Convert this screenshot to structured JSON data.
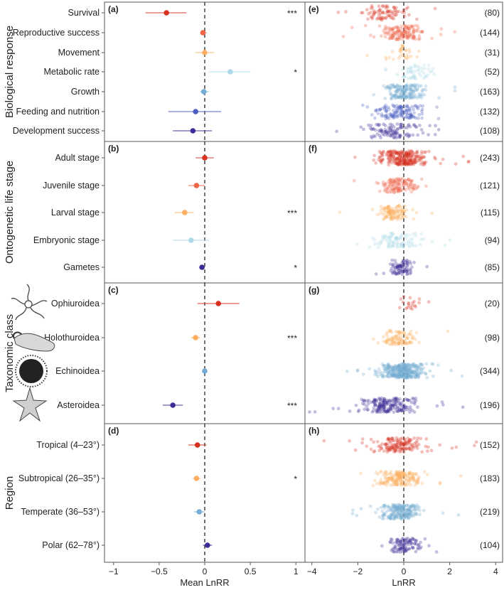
{
  "colors": {
    "red": "#d7301f",
    "orange_red": "#ef6548",
    "orange": "#fdae61",
    "light_blue": "#abd9e9",
    "mid_blue": "#74add1",
    "blue_purple": "#4a5cc0",
    "purple": "#3f2b96"
  },
  "chart_data": [
    {
      "type": "scatter",
      "group_title": "Biological response",
      "left_panel": "(a)",
      "right_panel": "(e)",
      "categories": [
        {
          "label": "Survival",
          "mean": -0.42,
          "ci": [
            -0.65,
            -0.2
          ],
          "sig": "***",
          "n": "(80)",
          "color": "#d7301f",
          "spread": 1.2
        },
        {
          "label": "Reproductive success",
          "mean": -0.02,
          "ci": [
            -0.05,
            0.02
          ],
          "sig": "",
          "n": "(144)",
          "color": "#ef6548",
          "spread": 1.1
        },
        {
          "label": "Movement",
          "mean": 0.0,
          "ci": [
            -0.1,
            0.1
          ],
          "sig": "",
          "n": "(31)",
          "color": "#fdae61",
          "spread": 0.8
        },
        {
          "label": "Metabolic rate",
          "mean": 0.28,
          "ci": [
            0.05,
            0.5
          ],
          "sig": "*",
          "n": "(52)",
          "color": "#abd9e9",
          "spread": 1.0
        },
        {
          "label": "Growth",
          "mean": -0.01,
          "ci": [
            -0.05,
            0.04
          ],
          "sig": "",
          "n": "(163)",
          "color": "#74add1",
          "spread": 1.0
        },
        {
          "label": "Feeding and nutrition",
          "mean": -0.1,
          "ci": [
            -0.4,
            0.18
          ],
          "sig": "",
          "n": "(132)",
          "color": "#4a5cc0",
          "spread": 1.3
        },
        {
          "label": "Development success",
          "mean": -0.13,
          "ci": [
            -0.35,
            0.08
          ],
          "sig": "",
          "n": "(108)",
          "color": "#3f2b96",
          "spread": 1.6
        }
      ]
    },
    {
      "type": "scatter",
      "group_title": "Ontogenetic life stage",
      "left_panel": "(b)",
      "right_panel": "(f)",
      "categories": [
        {
          "label": "Adult stage",
          "mean": 0.0,
          "ci": [
            -0.1,
            0.1
          ],
          "sig": "",
          "n": "(243)",
          "color": "#d7301f",
          "spread": 1.3
        },
        {
          "label": "Juvenile stage",
          "mean": -0.09,
          "ci": [
            -0.18,
            0.0
          ],
          "sig": "",
          "n": "(121)",
          "color": "#ef6548",
          "spread": 1.0
        },
        {
          "label": "Larval stage",
          "mean": -0.22,
          "ci": [
            -0.33,
            -0.12
          ],
          "sig": "***",
          "n": "(115)",
          "color": "#fdae61",
          "spread": 0.9
        },
        {
          "label": "Embryonic stage",
          "mean": -0.15,
          "ci": [
            -0.35,
            0.05
          ],
          "sig": "",
          "n": "(94)",
          "color": "#abd9e9",
          "spread": 1.4
        },
        {
          "label": "Gametes",
          "mean": -0.03,
          "ci": [
            -0.06,
            0.0
          ],
          "sig": "*",
          "n": "(85)",
          "color": "#3f2b96",
          "spread": 0.6
        }
      ]
    },
    {
      "type": "scatter",
      "group_title": "Taxonomic class",
      "left_panel": "(c)",
      "right_panel": "(g)",
      "categories": [
        {
          "label": "Ophiuroidea",
          "mean": 0.15,
          "ci": [
            -0.08,
            0.38
          ],
          "sig": "",
          "n": "(20)",
          "color": "#d7301f",
          "spread": 0.6
        },
        {
          "label": "Holothuroidea",
          "mean": -0.1,
          "ci": [
            -0.15,
            -0.05
          ],
          "sig": "***",
          "n": "(98)",
          "color": "#fdae61",
          "spread": 0.9
        },
        {
          "label": "Echinoidea",
          "mean": 0.0,
          "ci": [
            -0.02,
            0.02
          ],
          "sig": "",
          "n": "(344)",
          "color": "#74add1",
          "spread": 1.2
        },
        {
          "label": "Asteroidea",
          "mean": -0.35,
          "ci": [
            -0.46,
            -0.24
          ],
          "sig": "***",
          "n": "(196)",
          "color": "#3f2b96",
          "spread": 1.4
        }
      ]
    },
    {
      "type": "scatter",
      "group_title": "Region",
      "left_panel": "(d)",
      "right_panel": "(h)",
      "categories": [
        {
          "label": "Tropical (4–23°)",
          "mean": -0.08,
          "ci": [
            -0.18,
            0.02
          ],
          "sig": "",
          "n": "(152)",
          "color": "#d7301f",
          "spread": 1.3
        },
        {
          "label": "Subtropical (26–35°)",
          "mean": -0.09,
          "ci": [
            -0.13,
            -0.05
          ],
          "sig": "*",
          "n": "(183)",
          "color": "#fdae61",
          "spread": 1.1
        },
        {
          "label": "Temperate (36–53°)",
          "mean": -0.06,
          "ci": [
            -0.12,
            0.0
          ],
          "sig": "",
          "n": "(219)",
          "color": "#74add1",
          "spread": 1.1
        },
        {
          "label": "Polar (62–78°)",
          "mean": 0.03,
          "ci": [
            -0.02,
            0.08
          ],
          "sig": "",
          "n": "(104)",
          "color": "#3f2b96",
          "spread": 0.9
        }
      ]
    }
  ],
  "axes": {
    "left": {
      "title": "Mean LnRR",
      "ticks": [
        "−1",
        "−0.5",
        "0",
        "0.5",
        "1"
      ],
      "tick_values": [
        -1,
        -0.5,
        0,
        0.5,
        1
      ],
      "xlim": [
        -1.1,
        1.1
      ]
    },
    "right": {
      "title": "LnRR",
      "ticks": [
        "−4",
        "−2",
        "0",
        "2",
        "4"
      ],
      "tick_values": [
        -4,
        -2,
        0,
        2,
        4
      ],
      "xlim": [
        -4.3,
        4.3
      ]
    }
  },
  "icons": [
    "ophiuroid-icon",
    "holothuroid-icon",
    "echinoid-icon",
    "asteroid-icon"
  ]
}
